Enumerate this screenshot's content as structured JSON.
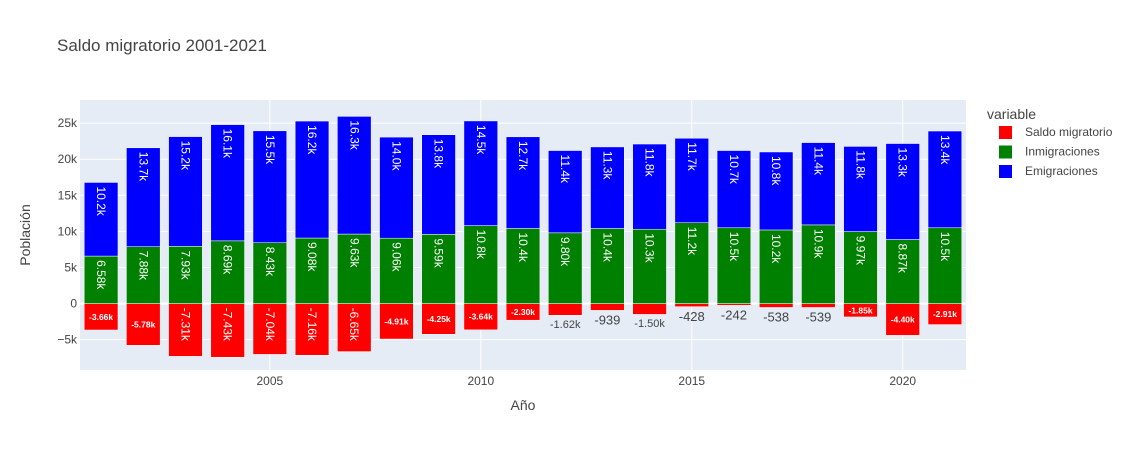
{
  "chart_data": {
    "type": "bar",
    "barmode": "relative",
    "title": "Saldo migratorio 2001-2021",
    "xlabel": "Año",
    "ylabel": "Población",
    "x": [
      2001,
      2002,
      2003,
      2004,
      2005,
      2006,
      2007,
      2008,
      2009,
      2010,
      2011,
      2012,
      2013,
      2014,
      2015,
      2016,
      2017,
      2018,
      2019,
      2020,
      2021
    ],
    "xlim": [
      2000.5,
      2021.5
    ],
    "ylim": [
      -9200,
      28200
    ],
    "x_ticks": [
      2005,
      2010,
      2015,
      2020
    ],
    "y_ticks": [
      -5000,
      0,
      5000,
      10000,
      15000,
      20000,
      25000
    ],
    "y_tick_labels": [
      "−5k",
      "0",
      "5k",
      "10k",
      "15k",
      "20k",
      "25k"
    ],
    "grid": true,
    "legend_title": "variable",
    "legend_position": "top-right",
    "series": [
      {
        "name": "Saldo migratorio",
        "color": "#ff0000",
        "values": [
          -3660,
          -5780,
          -7310,
          -7430,
          -7040,
          -7160,
          -6650,
          -4910,
          -4250,
          -3640,
          -2300,
          -1620,
          -939,
          -1500,
          -428,
          -242,
          -538,
          -539,
          -1850,
          -4400,
          -2910
        ],
        "text": [
          "-3.66k",
          "-5.78k",
          "-7.31k",
          "-7.43k",
          "-7.04k",
          "-7.16k",
          "-6.65k",
          "-4.91k",
          "-4.25k",
          "-3.64k",
          "-2.30k",
          "-1.62k",
          "-939",
          "-1.50k",
          "-428",
          "-242",
          "-538",
          "-539",
          "-1.85k",
          "-4.40k",
          "-2.91k"
        ]
      },
      {
        "name": "Inmigraciones",
        "color": "#008000",
        "values": [
          6580,
          7880,
          7930,
          8690,
          8430,
          9080,
          9630,
          9060,
          9590,
          10800,
          10400,
          9800,
          10400,
          10300,
          11200,
          10500,
          10200,
          10900,
          9970,
          8870,
          10500
        ],
        "text": [
          "6.58k",
          "7.88k",
          "7.93k",
          "8.69k",
          "8.43k",
          "9.08k",
          "9.63k",
          "9.06k",
          "9.59k",
          "10.8k",
          "10.4k",
          "9.80k",
          "10.4k",
          "10.3k",
          "11.2k",
          "10.5k",
          "10.2k",
          "10.9k",
          "9.97k",
          "8.87k",
          "10.5k"
        ]
      },
      {
        "name": "Emigraciones",
        "color": "#0000ff",
        "values": [
          10200,
          13700,
          15200,
          16100,
          15500,
          16200,
          16300,
          14000,
          13800,
          14500,
          12700,
          11400,
          11300,
          11800,
          11700,
          10700,
          10800,
          11400,
          11800,
          13300,
          13400
        ],
        "text": [
          "10.2k",
          "13.7k",
          "15.2k",
          "16.1k",
          "15.5k",
          "16.2k",
          "16.3k",
          "14.0k",
          "13.8k",
          "14.5k",
          "12.7k",
          "11.4k",
          "11.3k",
          "11.8k",
          "11.7k",
          "10.7k",
          "10.8k",
          "11.4k",
          "11.8k",
          "13.3k",
          "13.4k"
        ]
      }
    ]
  }
}
